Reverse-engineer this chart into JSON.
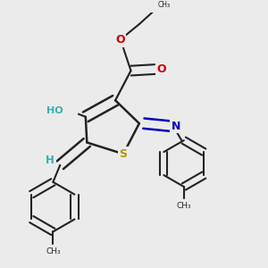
{
  "bg_color": "#ebebeb",
  "bond_color": "#222222",
  "sulfur_color": "#b8960a",
  "nitrogen_color": "#0000bb",
  "oxygen_color": "#cc0000",
  "oh_color": "#3aadad",
  "figsize": [
    3.0,
    3.0
  ],
  "dpi": 100,
  "xlim": [
    0.05,
    0.95
  ],
  "ylim": [
    0.05,
    0.95
  ]
}
